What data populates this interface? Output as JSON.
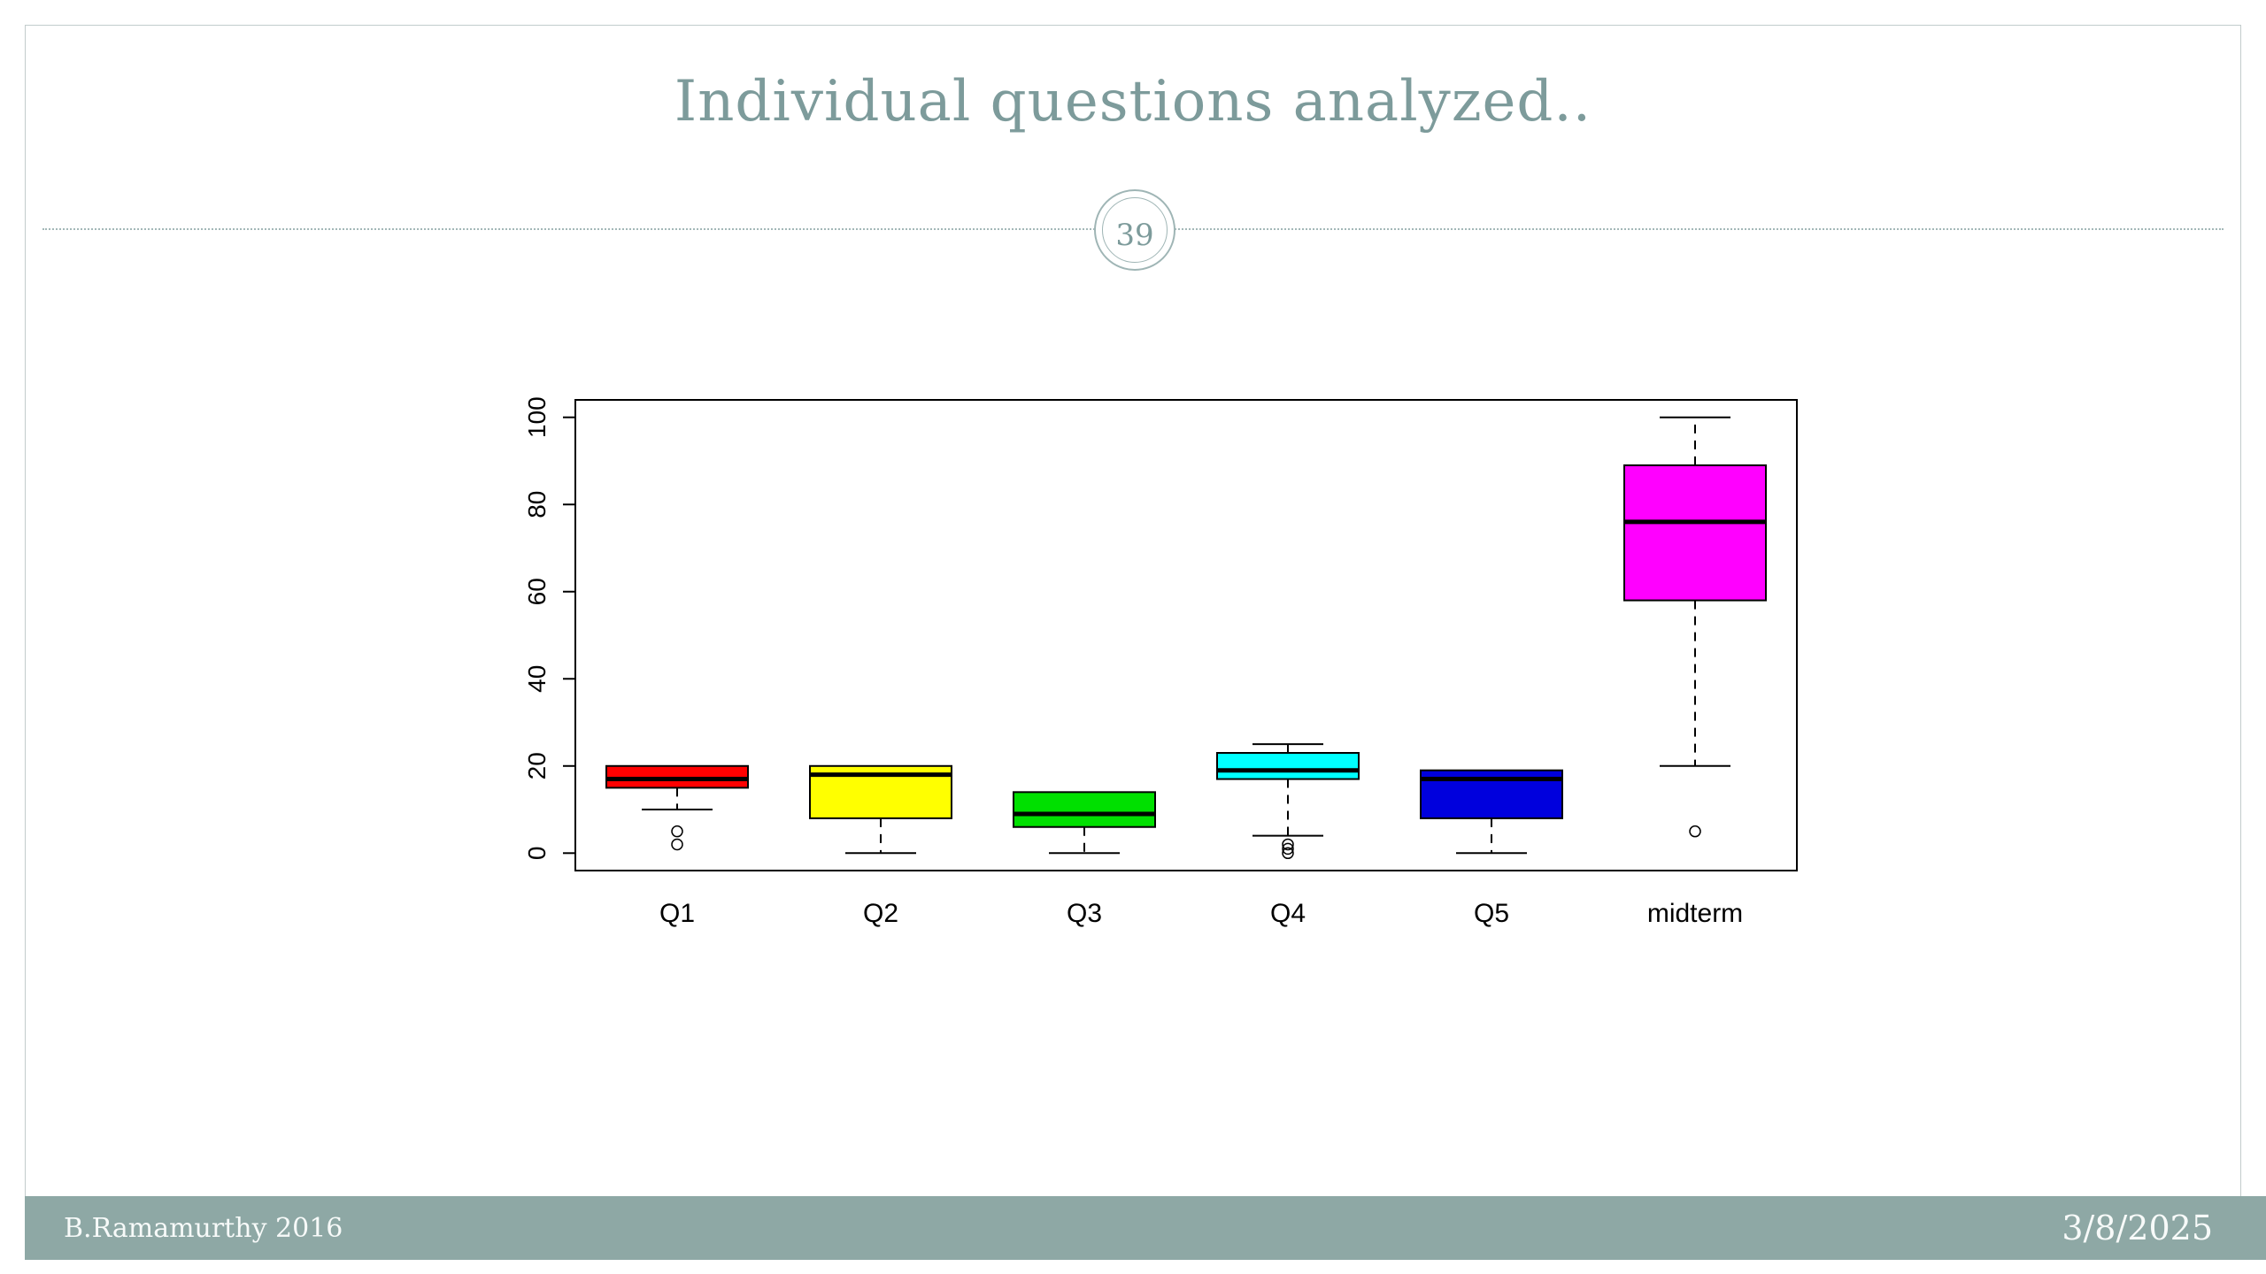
{
  "slide": {
    "title": "Individual questions analyzed..",
    "page_number": "39",
    "footer": {
      "left": "B.Ramamurthy 2016",
      "right": "3/8/2025"
    }
  },
  "theme": {
    "title_color": "#7d9b9b",
    "footer_bg": "#8ea8a5",
    "footer_text": "#f7faf9",
    "border_color": "#c2cccc",
    "dotted_line_color": "#a3b8b8",
    "badge_ring": "#9fb5b5"
  },
  "chart_data": {
    "type": "boxplot",
    "title": "",
    "xlabel": "",
    "ylabel": "",
    "categories": [
      "Q1",
      "Q2",
      "Q3",
      "Q4",
      "Q5",
      "midterm"
    ],
    "ylim": [
      0,
      100
    ],
    "yticks": [
      0,
      20,
      40,
      60,
      80,
      100
    ],
    "grid": false,
    "legend": "none",
    "series": [
      {
        "name": "Q1",
        "color": "#ff0000",
        "whisker_low": 10,
        "q1": 15,
        "median": 17,
        "q3": 20,
        "whisker_high": 20,
        "outliers": [
          5,
          2
        ]
      },
      {
        "name": "Q2",
        "color": "#ffff00",
        "whisker_low": 0,
        "q1": 8,
        "median": 18,
        "q3": 20,
        "whisker_high": 20,
        "outliers": []
      },
      {
        "name": "Q3",
        "color": "#00e000",
        "whisker_low": 0,
        "q1": 6,
        "median": 9,
        "q3": 14,
        "whisker_high": 14,
        "outliers": []
      },
      {
        "name": "Q4",
        "color": "#00ffff",
        "whisker_low": 4,
        "q1": 17,
        "median": 19,
        "q3": 23,
        "whisker_high": 25,
        "outliers": [
          2,
          1,
          0
        ]
      },
      {
        "name": "Q5",
        "color": "#0000dd",
        "whisker_low": 0,
        "q1": 8,
        "median": 17,
        "q3": 19,
        "whisker_high": 19,
        "outliers": []
      },
      {
        "name": "midterm",
        "color": "#ff00ff",
        "whisker_low": 20,
        "q1": 58,
        "median": 76,
        "q3": 89,
        "whisker_high": 100,
        "outliers": [
          5
        ]
      }
    ]
  }
}
